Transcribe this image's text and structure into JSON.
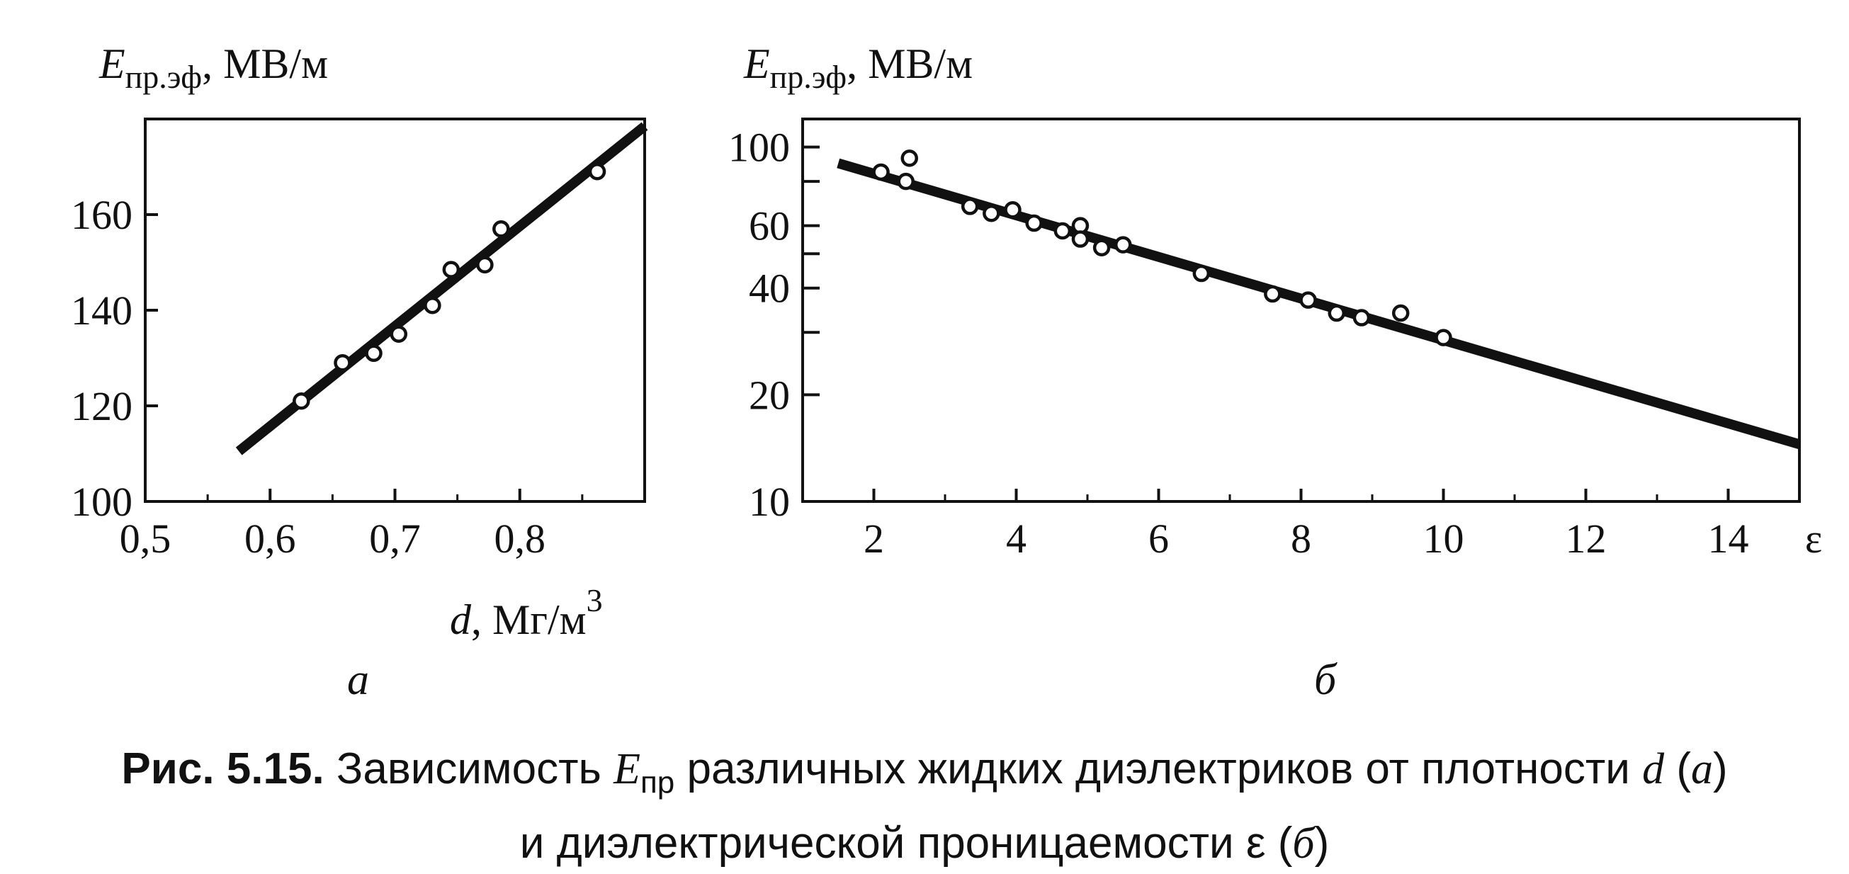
{
  "chart_data": [
    {
      "panel": "а",
      "type": "scatter",
      "ylabel_main": "E",
      "ylabel_sub": "пр.эф",
      "ylabel_unit": ", МВ/м",
      "xlabel_main": "d",
      "xlabel_unit": ", Мг/м",
      "xlabel_sup": "3",
      "xlim": [
        0.5,
        0.9
      ],
      "ylim": [
        100,
        180
      ],
      "xticks": [
        0.5,
        0.6,
        0.7,
        0.8
      ],
      "xtick_labels": [
        "0,5",
        "0,6",
        "0,7",
        "0,8"
      ],
      "yticks": [
        100,
        120,
        140,
        160
      ],
      "ytick_labels": [
        "100",
        "120",
        "140",
        "160"
      ],
      "points": [
        {
          "x": 0.625,
          "y": 121
        },
        {
          "x": 0.658,
          "y": 129
        },
        {
          "x": 0.683,
          "y": 131
        },
        {
          "x": 0.703,
          "y": 135
        },
        {
          "x": 0.73,
          "y": 141
        },
        {
          "x": 0.745,
          "y": 148.5
        },
        {
          "x": 0.772,
          "y": 149.5
        },
        {
          "x": 0.785,
          "y": 157
        },
        {
          "x": 0.862,
          "y": 169
        }
      ],
      "fit_line": [
        {
          "x": 0.575,
          "y": 110.5
        },
        {
          "x": 0.9,
          "y": 178.5
        }
      ]
    },
    {
      "panel": "б",
      "type": "scatter",
      "yscale": "log",
      "ylabel_main": "E",
      "ylabel_sub": "пр.эф",
      "ylabel_unit": ", МВ/м",
      "xlabel": "ε",
      "xlim": [
        1,
        15
      ],
      "ylim": [
        10,
        120
      ],
      "xticks": [
        2,
        4,
        6,
        8,
        10,
        12,
        14
      ],
      "xtick_labels": [
        "2",
        "4",
        "6",
        "8",
        "10",
        "12",
        "14"
      ],
      "yticks": [
        10,
        20,
        40,
        60,
        100
      ],
      "ytick_labels": [
        "10",
        "20",
        "40",
        "60",
        "100"
      ],
      "yminor_ticks": [
        30,
        50,
        80
      ],
      "points": [
        {
          "x": 2.1,
          "y": 85
        },
        {
          "x": 2.45,
          "y": 80
        },
        {
          "x": 2.5,
          "y": 93
        },
        {
          "x": 3.35,
          "y": 68
        },
        {
          "x": 3.65,
          "y": 65
        },
        {
          "x": 3.95,
          "y": 66.5
        },
        {
          "x": 4.25,
          "y": 61
        },
        {
          "x": 4.65,
          "y": 58
        },
        {
          "x": 4.9,
          "y": 60
        },
        {
          "x": 4.9,
          "y": 55
        },
        {
          "x": 5.2,
          "y": 52
        },
        {
          "x": 5.5,
          "y": 53
        },
        {
          "x": 6.6,
          "y": 44
        },
        {
          "x": 7.6,
          "y": 38.5
        },
        {
          "x": 8.1,
          "y": 37
        },
        {
          "x": 8.5,
          "y": 34
        },
        {
          "x": 8.85,
          "y": 33
        },
        {
          "x": 9.4,
          "y": 34
        },
        {
          "x": 10.0,
          "y": 29
        }
      ],
      "fit_line": [
        {
          "x": 1.5,
          "y": 90
        },
        {
          "x": 15,
          "y": 14.5
        }
      ]
    }
  ],
  "caption": {
    "fig_number": "Рис. 5.15.",
    "text_1": " Зависимость ",
    "var_E": "E",
    "var_E_sub": "пр",
    "text_2": " различных жидких диэлектриков от плотности ",
    "var_d": "d",
    "text_3": " (",
    "panel_a": "а",
    "text_4": ")",
    "line2_text": "и диэлектрической проницаемости ε (",
    "panel_b": "б",
    "line2_end": ")"
  }
}
